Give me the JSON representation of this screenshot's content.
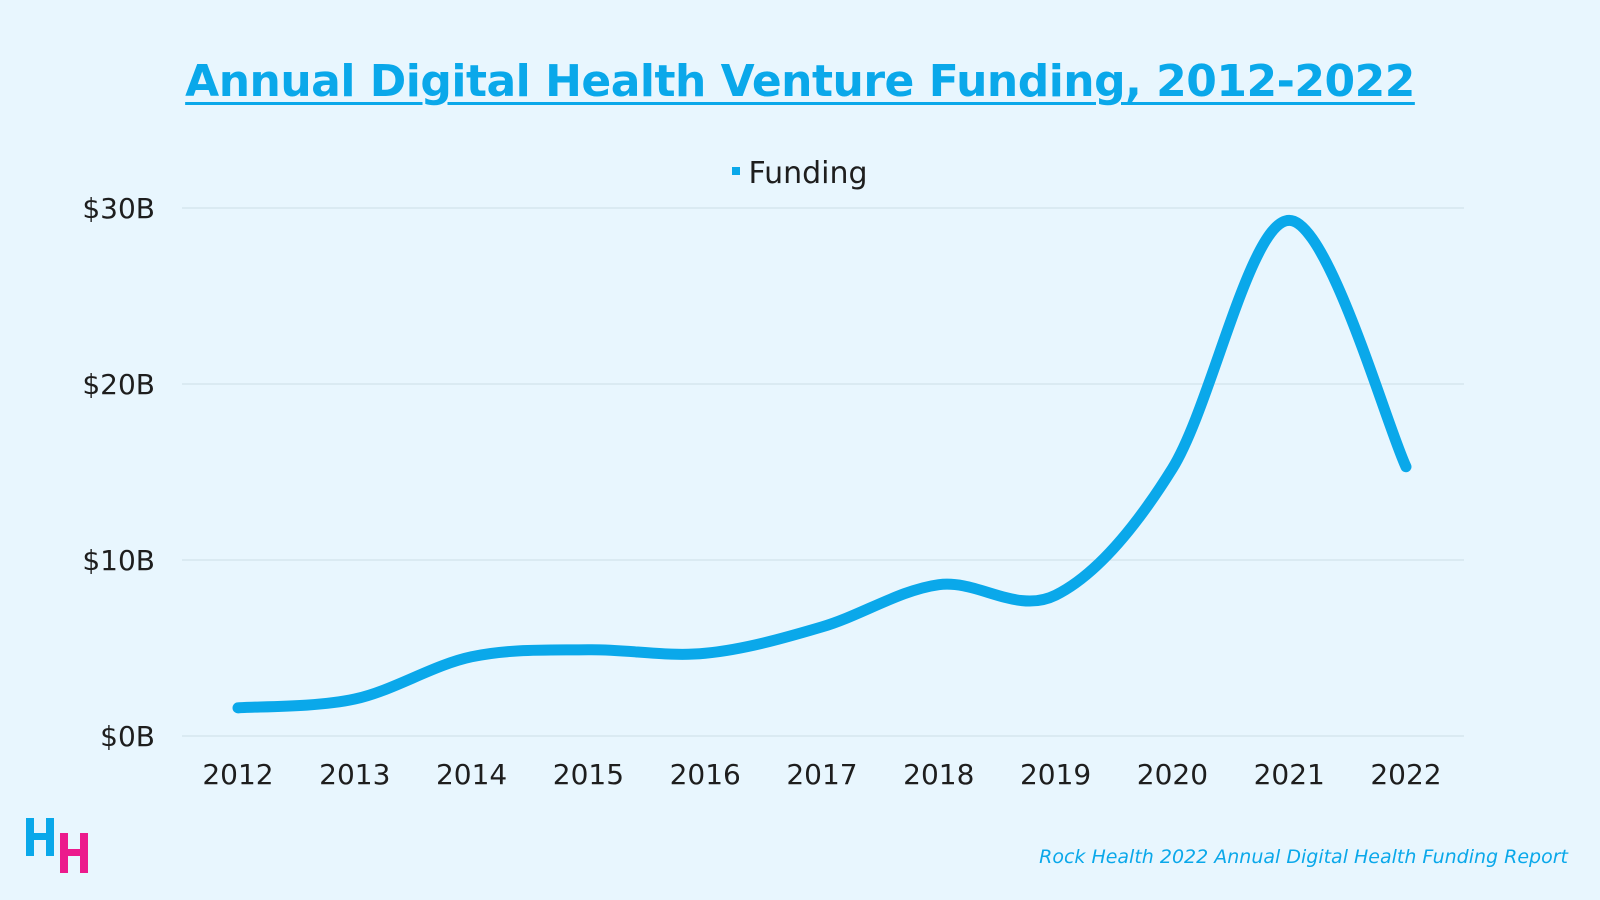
{
  "chart_data": {
    "type": "line",
    "title": "Annual Digital Health Venture Funding, 2012-2022",
    "legend": {
      "position": "top",
      "entries": [
        "Funding"
      ]
    },
    "categories": [
      "2012",
      "2013",
      "2014",
      "2015",
      "2016",
      "2017",
      "2018",
      "2019",
      "2020",
      "2021",
      "2022"
    ],
    "series": [
      {
        "name": "Funding",
        "values": [
          1.6,
          2.1,
          4.5,
          4.9,
          4.7,
          6.2,
          8.6,
          8.0,
          15.2,
          29.3,
          15.3
        ],
        "color": "#0aa8ea"
      }
    ],
    "ylim": [
      0,
      30
    ],
    "yticks": [
      0,
      10,
      20,
      30
    ],
    "ytick_labels": [
      "$0B",
      "$10B",
      "$20B",
      "$30B"
    ],
    "grid": true,
    "smooth": true
  },
  "source": "Rock Health 2022 Annual Digital Health Funding Report",
  "logo": {
    "text": "HH",
    "colors": [
      "#0aa8ea",
      "#ec1a8c"
    ]
  }
}
